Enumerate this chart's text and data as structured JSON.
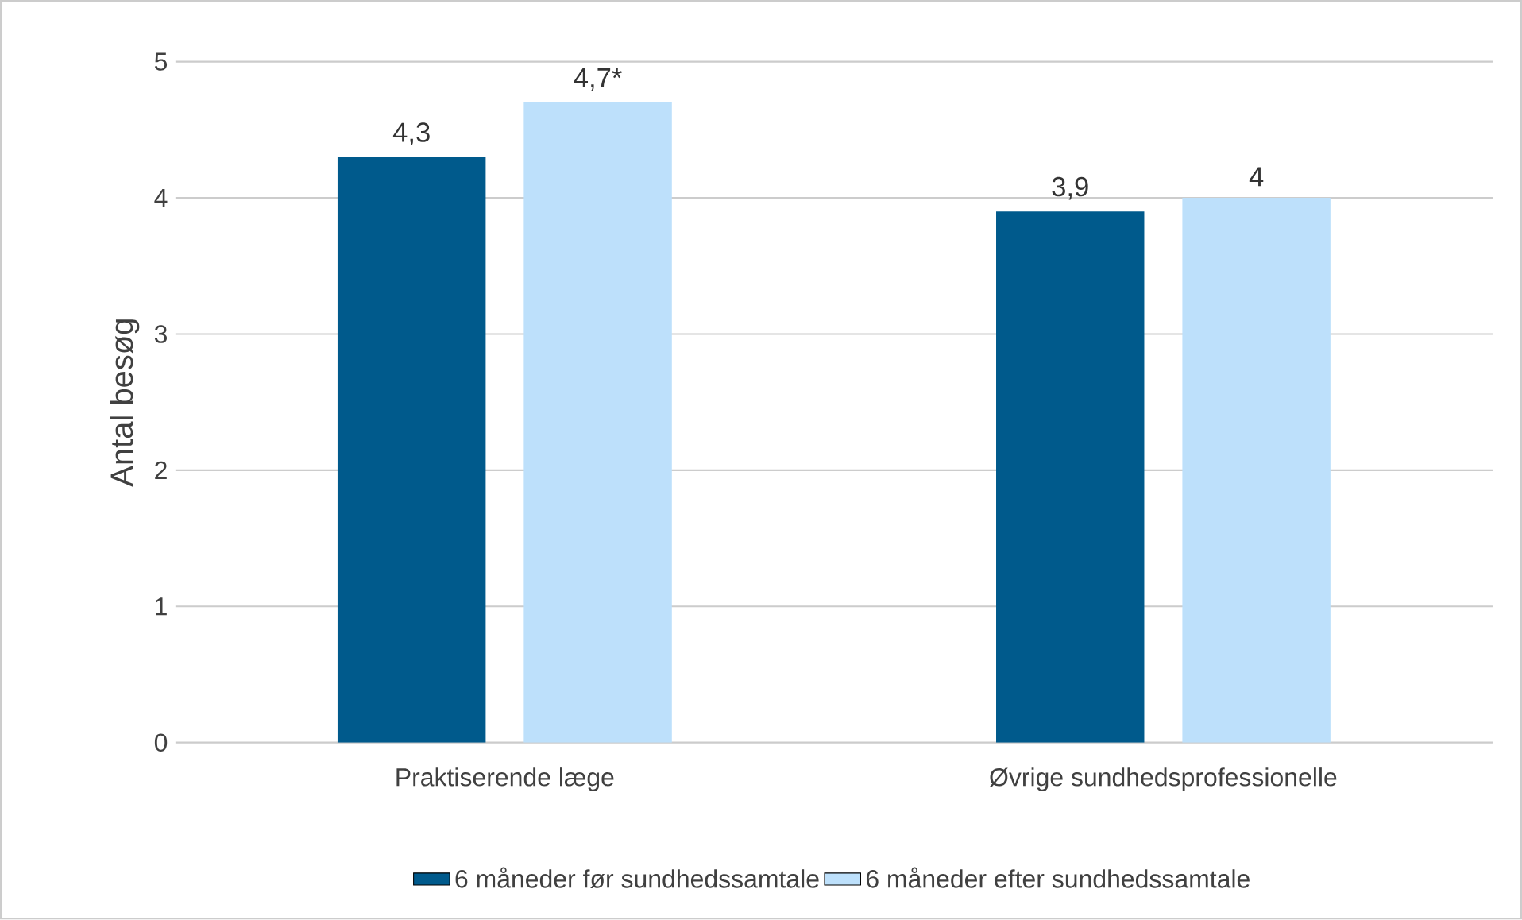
{
  "chart_data": {
    "type": "bar",
    "ylabel": "Antal besøg",
    "categories": [
      "Praktiserende læge",
      "Øvrige sundhedsprofessionelle"
    ],
    "series": [
      {
        "name": "6 måneder før sundhedssamtale",
        "color": "#005a8c",
        "values": [
          4.3,
          3.9
        ],
        "value_labels": [
          "4,3",
          "3,9"
        ]
      },
      {
        "name": "6 måneder efter sundhedssamtale",
        "color": "#bde0fb",
        "values": [
          4.7,
          4.0
        ],
        "value_labels": [
          "4,7*",
          "4"
        ]
      }
    ],
    "ylim": [
      0,
      5
    ],
    "yticks": [
      0,
      1,
      2,
      3,
      4,
      5
    ],
    "grid": "y",
    "legend": "bottom"
  }
}
